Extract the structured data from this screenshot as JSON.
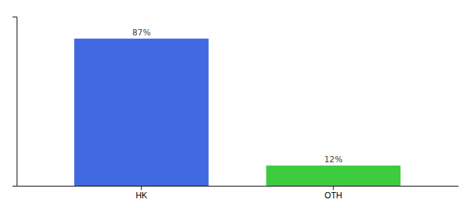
{
  "chart_data": {
    "type": "bar",
    "categories": [
      "HK",
      "OTH"
    ],
    "values": [
      87,
      12
    ],
    "value_labels": [
      "87%",
      "12%"
    ],
    "colors": [
      "#4169e1",
      "#3dcc3d"
    ],
    "ylim": [
      0,
      100
    ],
    "data_labels": true,
    "tick_labels": "x",
    "grid": false
  }
}
